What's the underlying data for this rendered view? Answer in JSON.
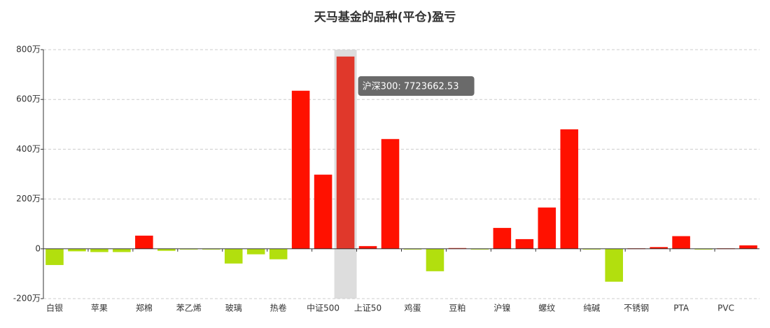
{
  "chart_data": {
    "type": "bar",
    "title": "天马基金的品种(平仓)盈亏",
    "categories": [
      "白银",
      null,
      "苹果",
      null,
      "郑棉",
      null,
      "苯乙烯",
      null,
      "玻璃",
      null,
      "热卷",
      null,
      "中证500",
      null,
      "上证50",
      null,
      "鸡蛋",
      null,
      "豆粕",
      null,
      "沪镍",
      null,
      "螺纹",
      null,
      "纯碱",
      null,
      "不锈钢",
      null,
      "PTA",
      null,
      "PVC",
      null
    ],
    "values": [
      -650000,
      -100000,
      -130000,
      -130000,
      530000,
      -80000,
      -10000,
      -10000,
      -590000,
      -220000,
      -420000,
      6350000,
      2980000,
      7723662.53,
      110000,
      4410000,
      -20000,
      -900000,
      30000,
      -10000,
      840000,
      390000,
      1660000,
      4800000,
      -20000,
      -1320000,
      20000,
      70000,
      510000,
      -10000,
      20000,
      140000
    ],
    "positive_color": "#ff1100",
    "negative_color": "#b2df0e",
    "highlight_color": "#e0382b",
    "ylim": [
      -2000000,
      8000000
    ],
    "yticks": [
      {
        "value": -2000000,
        "label": "-200万"
      },
      {
        "value": 0,
        "label": "0"
      },
      {
        "value": 2000000,
        "label": "200万"
      },
      {
        "value": 4000000,
        "label": "400万"
      },
      {
        "value": 6000000,
        "label": "600万"
      },
      {
        "value": 8000000,
        "label": "800万"
      }
    ],
    "grid": true,
    "tooltip": "沪深300: 7723662.53"
  }
}
